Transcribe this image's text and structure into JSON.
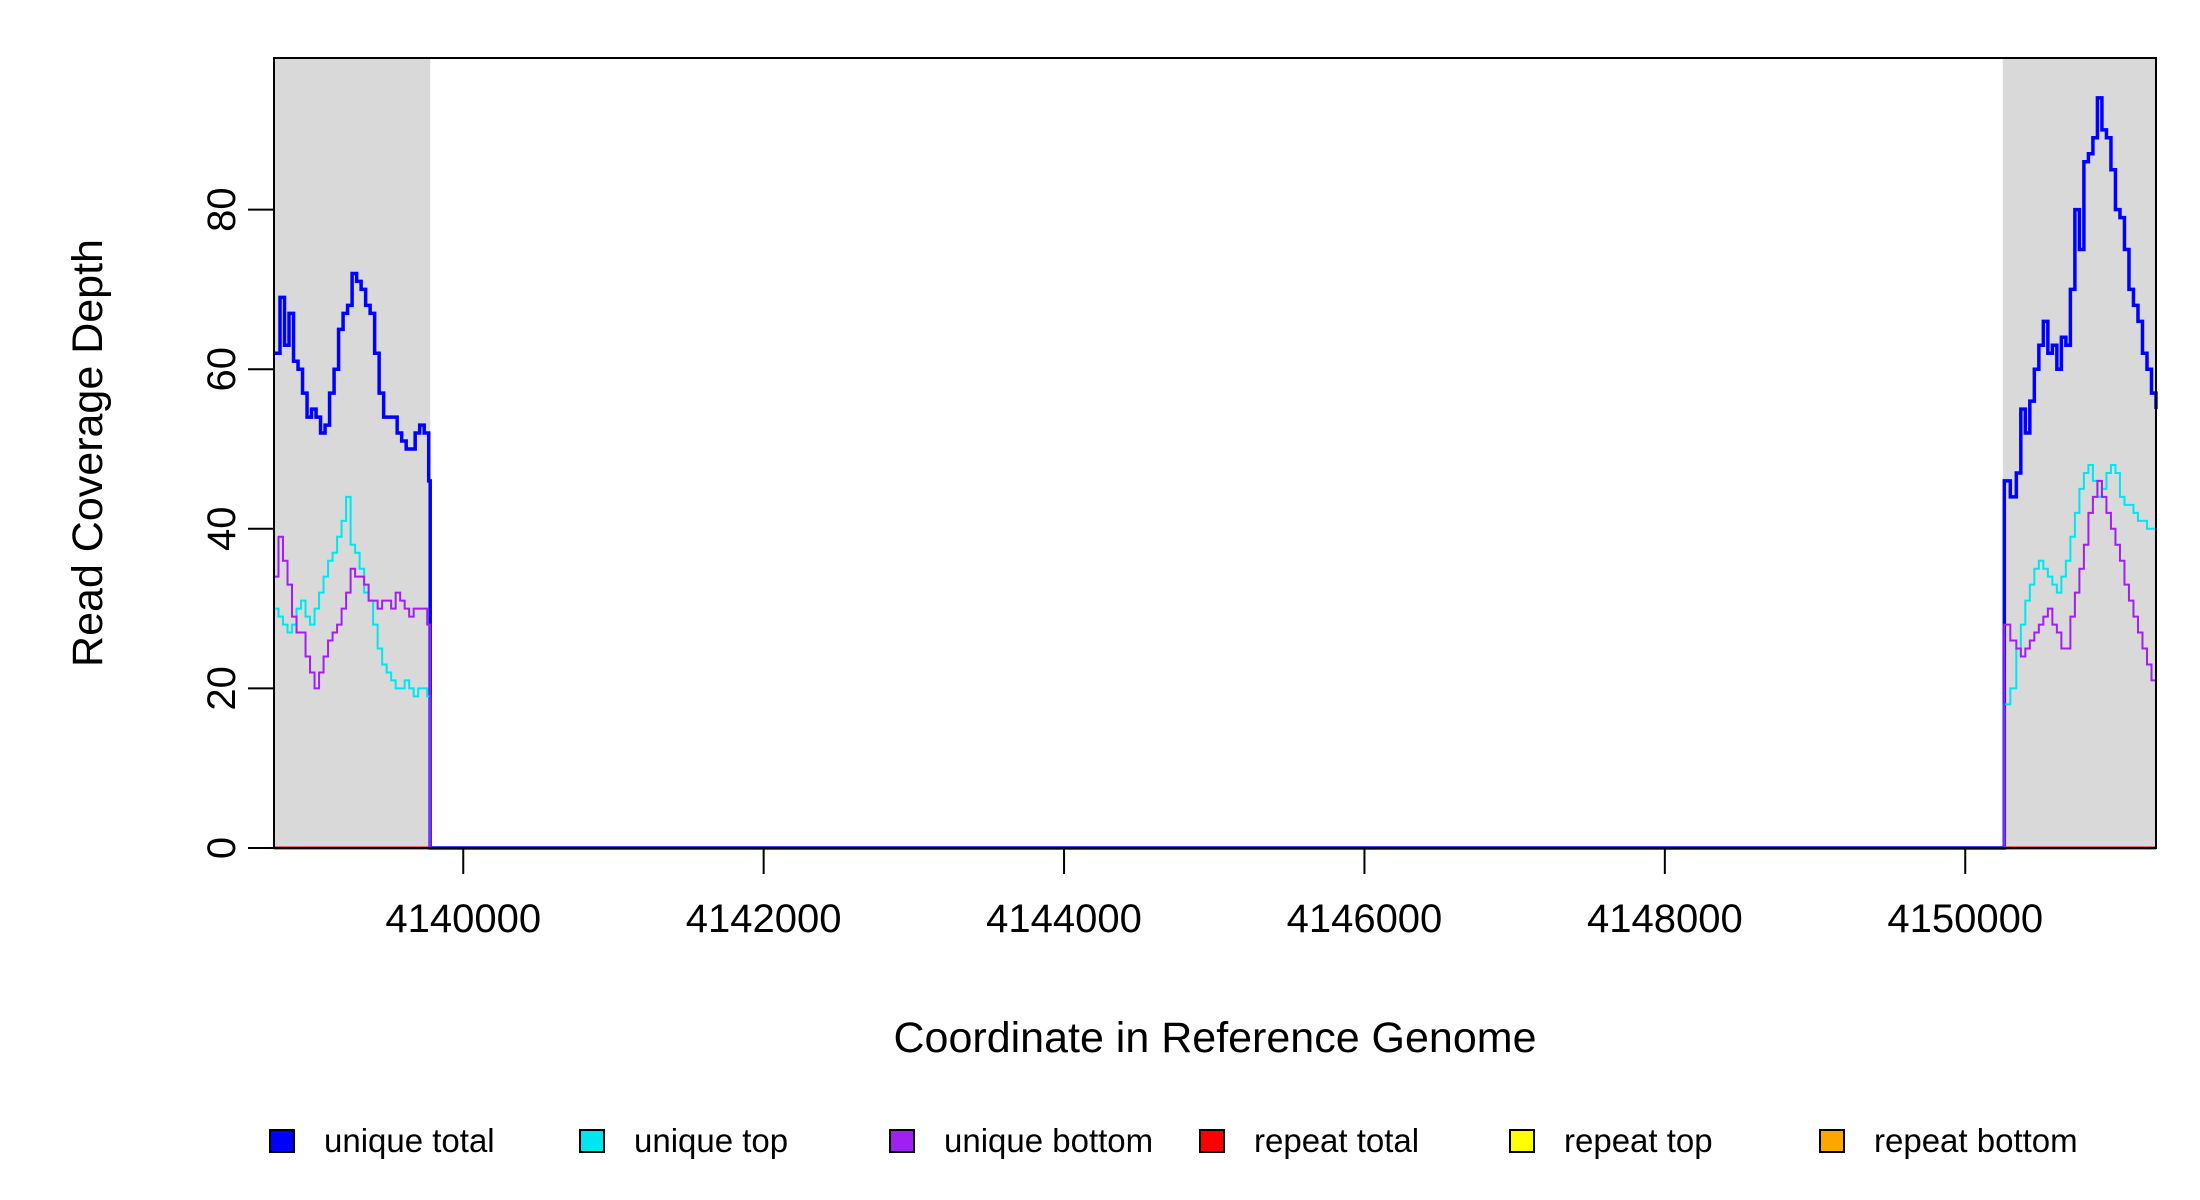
{
  "chart_data": {
    "type": "line",
    "title": "",
    "xlabel": "Coordinate in Reference Genome",
    "ylabel": "Read Coverage Depth",
    "xlim": [
      4138740,
      4151270
    ],
    "ylim": [
      0,
      99
    ],
    "x_ticks": [
      4140000,
      4142000,
      4144000,
      4146000,
      4148000,
      4150000
    ],
    "y_ticks": [
      0,
      20,
      40,
      60,
      80
    ],
    "shaded_regions": [
      [
        4138740,
        4139780
      ],
      [
        4150250,
        4151270
      ]
    ],
    "colors": {
      "shade": "#d9d9d9",
      "unique_total": "#0000ff",
      "unique_top": "#00e5ee",
      "unique_bottom": "#a020f0",
      "repeat_total": "#ff0000",
      "repeat_top": "#ffff00",
      "repeat_bottom": "#ffa500"
    },
    "legend_position": "bottom",
    "series": [
      {
        "name": "unique total",
        "color": "#0000ff",
        "points": [
          [
            4138740,
            62
          ],
          [
            4138780,
            69
          ],
          [
            4138810,
            63
          ],
          [
            4138840,
            67
          ],
          [
            4138870,
            61
          ],
          [
            4138900,
            60
          ],
          [
            4138930,
            57
          ],
          [
            4138960,
            54
          ],
          [
            4138990,
            55
          ],
          [
            4139020,
            54
          ],
          [
            4139050,
            52
          ],
          [
            4139080,
            53
          ],
          [
            4139110,
            57
          ],
          [
            4139140,
            60
          ],
          [
            4139170,
            65
          ],
          [
            4139200,
            67
          ],
          [
            4139230,
            68
          ],
          [
            4139260,
            72
          ],
          [
            4139290,
            71
          ],
          [
            4139320,
            70
          ],
          [
            4139350,
            68
          ],
          [
            4139380,
            67
          ],
          [
            4139410,
            62
          ],
          [
            4139440,
            57
          ],
          [
            4139470,
            54
          ],
          [
            4139500,
            54
          ],
          [
            4139530,
            54
          ],
          [
            4139560,
            52
          ],
          [
            4139590,
            51
          ],
          [
            4139620,
            50
          ],
          [
            4139650,
            50
          ],
          [
            4139680,
            52
          ],
          [
            4139710,
            53
          ],
          [
            4139740,
            52
          ],
          [
            4139770,
            46
          ],
          [
            4139780,
            0
          ],
          [
            4150250,
            0
          ],
          [
            4150260,
            46
          ],
          [
            4150300,
            44
          ],
          [
            4150340,
            47
          ],
          [
            4150370,
            55
          ],
          [
            4150400,
            52
          ],
          [
            4150430,
            56
          ],
          [
            4150460,
            60
          ],
          [
            4150490,
            63
          ],
          [
            4150520,
            66
          ],
          [
            4150550,
            62
          ],
          [
            4150580,
            63
          ],
          [
            4150610,
            60
          ],
          [
            4150640,
            64
          ],
          [
            4150670,
            63
          ],
          [
            4150700,
            70
          ],
          [
            4150730,
            80
          ],
          [
            4150760,
            75
          ],
          [
            4150790,
            86
          ],
          [
            4150820,
            87
          ],
          [
            4150850,
            89
          ],
          [
            4150880,
            94
          ],
          [
            4150910,
            90
          ],
          [
            4150940,
            89
          ],
          [
            4150970,
            85
          ],
          [
            4151000,
            80
          ],
          [
            4151030,
            79
          ],
          [
            4151060,
            75
          ],
          [
            4151090,
            70
          ],
          [
            4151120,
            68
          ],
          [
            4151150,
            66
          ],
          [
            4151180,
            62
          ],
          [
            4151210,
            60
          ],
          [
            4151240,
            57
          ],
          [
            4151270,
            55
          ]
        ]
      },
      {
        "name": "unique top",
        "color": "#00e5ee",
        "points": [
          [
            4138740,
            30
          ],
          [
            4138770,
            29
          ],
          [
            4138800,
            28
          ],
          [
            4138830,
            27
          ],
          [
            4138860,
            28
          ],
          [
            4138890,
            30
          ],
          [
            4138920,
            31
          ],
          [
            4138950,
            29
          ],
          [
            4138980,
            28
          ],
          [
            4139010,
            30
          ],
          [
            4139040,
            32
          ],
          [
            4139070,
            34
          ],
          [
            4139100,
            36
          ],
          [
            4139130,
            37
          ],
          [
            4139160,
            39
          ],
          [
            4139190,
            41
          ],
          [
            4139220,
            44
          ],
          [
            4139250,
            38
          ],
          [
            4139280,
            37
          ],
          [
            4139310,
            35
          ],
          [
            4139340,
            32
          ],
          [
            4139370,
            31
          ],
          [
            4139400,
            28
          ],
          [
            4139430,
            25
          ],
          [
            4139460,
            23
          ],
          [
            4139490,
            22
          ],
          [
            4139520,
            21
          ],
          [
            4139550,
            20
          ],
          [
            4139580,
            20
          ],
          [
            4139610,
            21
          ],
          [
            4139640,
            20
          ],
          [
            4139670,
            19
          ],
          [
            4139700,
            20
          ],
          [
            4139730,
            20
          ],
          [
            4139760,
            19
          ],
          [
            4139780,
            0
          ],
          [
            4150250,
            0
          ],
          [
            4150260,
            18
          ],
          [
            4150300,
            20
          ],
          [
            4150340,
            25
          ],
          [
            4150370,
            28
          ],
          [
            4150400,
            31
          ],
          [
            4150430,
            33
          ],
          [
            4150460,
            35
          ],
          [
            4150490,
            36
          ],
          [
            4150520,
            35
          ],
          [
            4150550,
            34
          ],
          [
            4150580,
            33
          ],
          [
            4150610,
            32
          ],
          [
            4150640,
            34
          ],
          [
            4150670,
            36
          ],
          [
            4150700,
            39
          ],
          [
            4150730,
            42
          ],
          [
            4150760,
            45
          ],
          [
            4150790,
            47
          ],
          [
            4150820,
            48
          ],
          [
            4150850,
            46
          ],
          [
            4150880,
            44
          ],
          [
            4150910,
            45
          ],
          [
            4150940,
            47
          ],
          [
            4150970,
            48
          ],
          [
            4151000,
            47
          ],
          [
            4151030,
            44
          ],
          [
            4151060,
            43
          ],
          [
            4151090,
            43
          ],
          [
            4151120,
            42
          ],
          [
            4151150,
            41
          ],
          [
            4151180,
            41
          ],
          [
            4151210,
            40
          ],
          [
            4151240,
            40
          ],
          [
            4151270,
            39
          ]
        ]
      },
      {
        "name": "unique bottom",
        "color": "#a020f0",
        "points": [
          [
            4138740,
            34
          ],
          [
            4138770,
            39
          ],
          [
            4138800,
            36
          ],
          [
            4138830,
            33
          ],
          [
            4138860,
            29
          ],
          [
            4138890,
            27
          ],
          [
            4138920,
            27
          ],
          [
            4138950,
            24
          ],
          [
            4138980,
            22
          ],
          [
            4139010,
            20
          ],
          [
            4139040,
            22
          ],
          [
            4139070,
            24
          ],
          [
            4139100,
            26
          ],
          [
            4139130,
            27
          ],
          [
            4139160,
            28
          ],
          [
            4139190,
            30
          ],
          [
            4139220,
            32
          ],
          [
            4139250,
            35
          ],
          [
            4139280,
            34
          ],
          [
            4139310,
            34
          ],
          [
            4139340,
            33
          ],
          [
            4139370,
            31
          ],
          [
            4139400,
            31
          ],
          [
            4139430,
            30
          ],
          [
            4139460,
            31
          ],
          [
            4139490,
            31
          ],
          [
            4139520,
            30
          ],
          [
            4139550,
            32
          ],
          [
            4139580,
            31
          ],
          [
            4139610,
            30
          ],
          [
            4139640,
            29
          ],
          [
            4139670,
            30
          ],
          [
            4139700,
            30
          ],
          [
            4139730,
            30
          ],
          [
            4139760,
            28
          ],
          [
            4139780,
            0
          ],
          [
            4150250,
            0
          ],
          [
            4150260,
            28
          ],
          [
            4150300,
            26
          ],
          [
            4150340,
            25
          ],
          [
            4150370,
            24
          ],
          [
            4150400,
            25
          ],
          [
            4150430,
            26
          ],
          [
            4150460,
            27
          ],
          [
            4150490,
            28
          ],
          [
            4150520,
            29
          ],
          [
            4150550,
            30
          ],
          [
            4150580,
            28
          ],
          [
            4150610,
            27
          ],
          [
            4150640,
            25
          ],
          [
            4150670,
            25
          ],
          [
            4150700,
            29
          ],
          [
            4150730,
            32
          ],
          [
            4150760,
            35
          ],
          [
            4150790,
            38
          ],
          [
            4150820,
            42
          ],
          [
            4150850,
            44
          ],
          [
            4150880,
            46
          ],
          [
            4150910,
            44
          ],
          [
            4150940,
            42
          ],
          [
            4150970,
            40
          ],
          [
            4151000,
            38
          ],
          [
            4151030,
            36
          ],
          [
            4151060,
            33
          ],
          [
            4151090,
            31
          ],
          [
            4151120,
            29
          ],
          [
            4151150,
            27
          ],
          [
            4151180,
            25
          ],
          [
            4151210,
            23
          ],
          [
            4151240,
            21
          ],
          [
            4151270,
            20
          ]
        ]
      },
      {
        "name": "repeat total",
        "color": "#ff0000",
        "points": [
          [
            4138740,
            0
          ],
          [
            4151270,
            0
          ]
        ]
      },
      {
        "name": "repeat top",
        "color": "#ffff00",
        "points": [
          [
            4138740,
            0
          ],
          [
            4151270,
            0
          ]
        ]
      },
      {
        "name": "repeat bottom",
        "color": "#ffa500",
        "points": [
          [
            4138740,
            0
          ],
          [
            4151270,
            0
          ]
        ]
      }
    ]
  }
}
